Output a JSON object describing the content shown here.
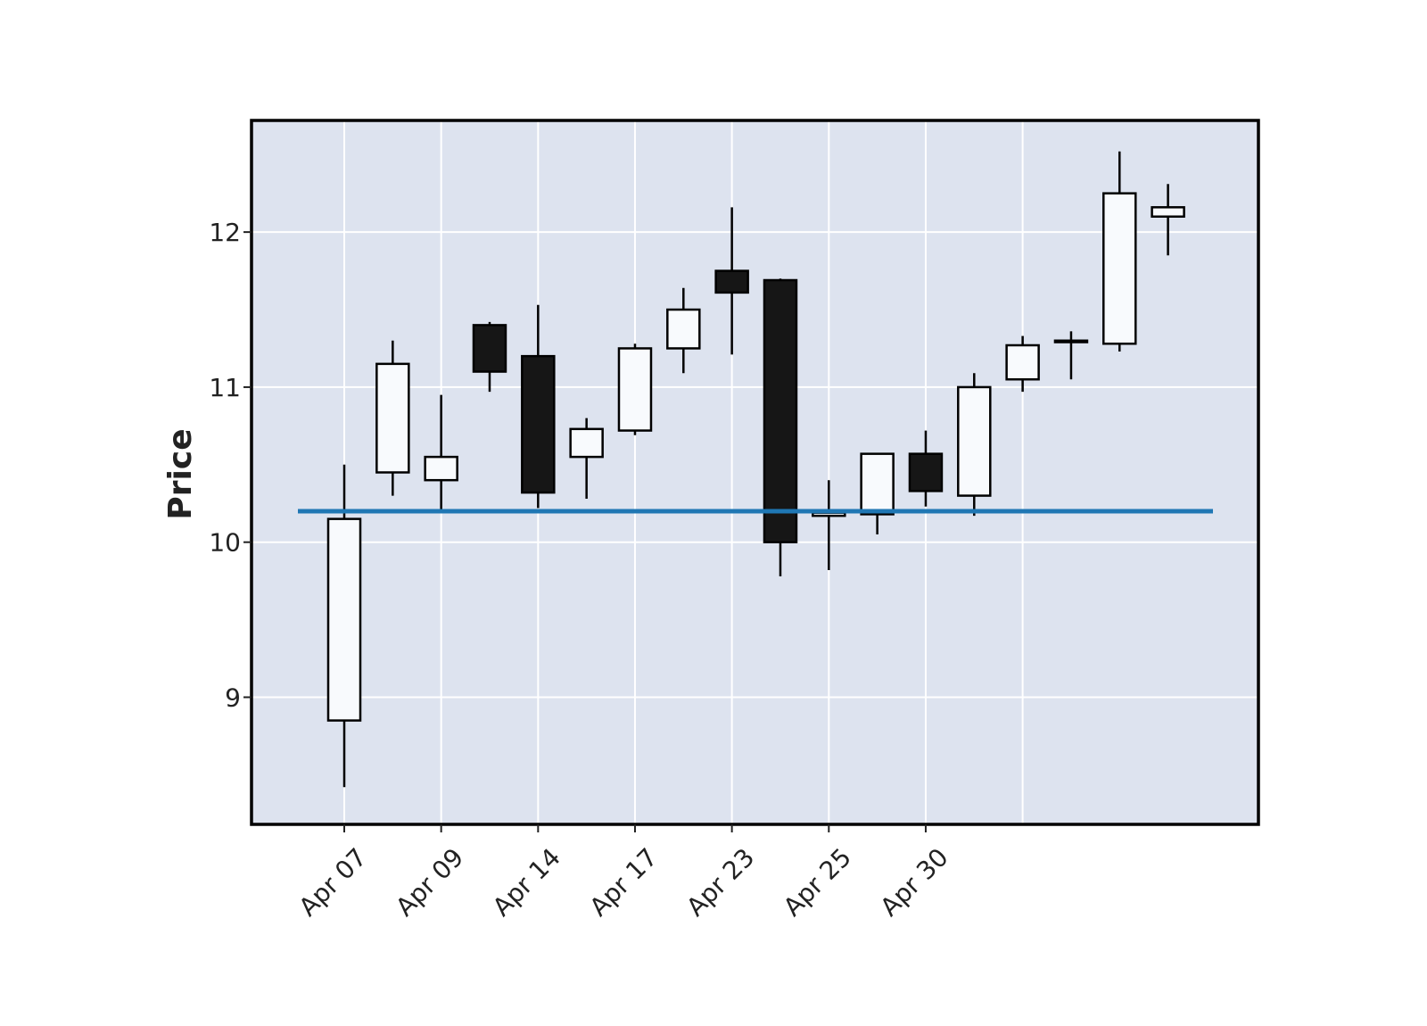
{
  "chart_data": {
    "type": "candlestick",
    "title": "",
    "xlabel": "",
    "ylabel": "Price",
    "ylim": [
      8.18,
      12.72
    ],
    "y_ticks": [
      9,
      10,
      11,
      12
    ],
    "x_tick_labels": [
      "Apr 07",
      "Apr 09",
      "Apr 14",
      "Apr 17",
      "Apr 23",
      "Apr 25",
      "Apr 30"
    ],
    "x_tick_indices": [
      0,
      2,
      4,
      6,
      8,
      10,
      12
    ],
    "grid": true,
    "candles": [
      {
        "open": 8.85,
        "high": 10.5,
        "low": 8.42,
        "close": 10.15
      },
      {
        "open": 10.45,
        "high": 11.3,
        "low": 10.3,
        "close": 11.15
      },
      {
        "open": 10.4,
        "high": 10.95,
        "low": 10.2,
        "close": 10.55
      },
      {
        "open": 11.4,
        "high": 11.42,
        "low": 10.97,
        "close": 11.1
      },
      {
        "open": 11.2,
        "high": 11.53,
        "low": 10.22,
        "close": 10.32
      },
      {
        "open": 10.55,
        "high": 10.8,
        "low": 10.28,
        "close": 10.73
      },
      {
        "open": 10.72,
        "high": 11.28,
        "low": 10.69,
        "close": 11.25
      },
      {
        "open": 11.25,
        "high": 11.64,
        "low": 11.09,
        "close": 11.5
      },
      {
        "open": 11.75,
        "high": 12.16,
        "low": 11.21,
        "close": 11.61
      },
      {
        "open": 11.69,
        "high": 11.7,
        "low": 9.78,
        "close": 10.0
      },
      {
        "open": 10.17,
        "high": 10.4,
        "low": 9.82,
        "close": 10.19
      },
      {
        "open": 10.18,
        "high": 10.57,
        "low": 10.05,
        "close": 10.57
      },
      {
        "open": 10.57,
        "high": 10.72,
        "low": 10.23,
        "close": 10.33
      },
      {
        "open": 10.3,
        "high": 11.09,
        "low": 10.17,
        "close": 11.0
      },
      {
        "open": 11.05,
        "high": 11.33,
        "low": 10.97,
        "close": 11.27
      },
      {
        "open": 11.29,
        "high": 11.36,
        "low": 11.05,
        "close": 11.3
      },
      {
        "open": 11.28,
        "high": 12.52,
        "low": 11.23,
        "close": 12.25
      },
      {
        "open": 12.1,
        "high": 12.31,
        "low": 11.85,
        "close": 12.16
      }
    ],
    "hline": {
      "value": 10.2,
      "color": "#1f77b4"
    },
    "colors": {
      "background": "#dde3ef",
      "grid": "#ffffff",
      "up_fill": "#f8fafd",
      "down_fill": "#161616",
      "edge": "#000000"
    }
  }
}
